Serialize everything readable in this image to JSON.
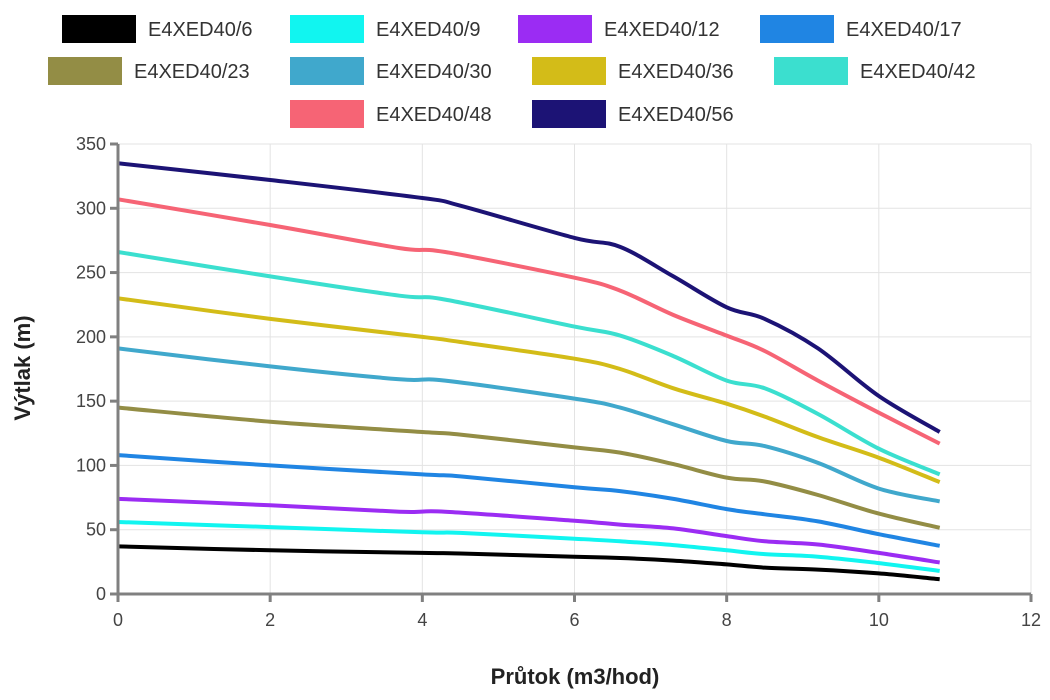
{
  "chart_data": {
    "type": "line",
    "xlabel": "Průtok (m3/hod)",
    "ylabel": "Výtlak (m)",
    "xlim": [
      0,
      12
    ],
    "ylim": [
      0,
      350
    ],
    "x_ticks": [
      0,
      2,
      4,
      6,
      8,
      10,
      12
    ],
    "y_ticks": [
      0,
      50,
      100,
      150,
      200,
      250,
      300,
      350
    ],
    "grid": true,
    "legend_position": "top",
    "series": [
      {
        "name": "E4XED40/6",
        "color": "#000000",
        "x": [
          0,
          2,
          4,
          4.5,
          6,
          6.6,
          7.3,
          8,
          8.5,
          9.2,
          10,
          10.8
        ],
        "y": [
          37,
          34,
          32,
          31.5,
          29,
          28,
          26,
          23,
          20.5,
          19,
          16,
          11.5
        ]
      },
      {
        "name": "E4XED40/9",
        "color": "#11f5f0",
        "x": [
          0,
          2,
          4,
          4.5,
          6,
          6.6,
          7.3,
          8,
          8.5,
          9.2,
          10,
          10.8
        ],
        "y": [
          56,
          52,
          48,
          47.5,
          43,
          41,
          38,
          34,
          31,
          29,
          24,
          18
        ]
      },
      {
        "name": "E4XED40/12",
        "color": "#9b2cf3",
        "x": [
          0,
          2,
          3.7,
          4.3,
          6,
          6.6,
          7.3,
          8,
          8.5,
          9.2,
          10,
          10.8
        ],
        "y": [
          74,
          69,
          64,
          64,
          57,
          54,
          51,
          45,
          41,
          38.5,
          32,
          24.5
        ]
      },
      {
        "name": "E4XED40/17",
        "color": "#2085e3",
        "x": [
          0,
          2,
          4,
          4.5,
          6,
          6.6,
          7.3,
          8,
          8.5,
          9.2,
          10,
          10.8
        ],
        "y": [
          108,
          100,
          93,
          91.5,
          83,
          80,
          74,
          66,
          62,
          56.5,
          46.5,
          37.5
        ]
      },
      {
        "name": "E4XED40/23",
        "color": "#938d45",
        "x": [
          0,
          2,
          4,
          4.5,
          6,
          6.6,
          7.3,
          8,
          8.5,
          9.2,
          10,
          10.8
        ],
        "y": [
          145,
          134,
          126,
          124,
          114,
          110,
          101,
          90.5,
          87.5,
          77,
          62.5,
          51.5
        ]
      },
      {
        "name": "E4XED40/30",
        "color": "#40a8cc",
        "x": [
          0,
          2,
          3.7,
          4.3,
          6,
          6.6,
          7.3,
          8,
          8.5,
          9.2,
          10,
          10.8
        ],
        "y": [
          191,
          177,
          167,
          166,
          152,
          145,
          132,
          119,
          115,
          102,
          82,
          72
        ]
      },
      {
        "name": "E4XED40/36",
        "color": "#d3bc18",
        "x": [
          0,
          2,
          4,
          4.5,
          6,
          6.6,
          7.3,
          8,
          8.5,
          9.2,
          10,
          10.8
        ],
        "y": [
          230,
          214,
          200,
          196,
          183,
          175,
          160,
          148,
          138,
          122,
          106,
          87
        ]
      },
      {
        "name": "E4XED40/42",
        "color": "#3bdfcf",
        "x": [
          0,
          2,
          3.7,
          4.3,
          6,
          6.6,
          7.3,
          8,
          8.5,
          9.2,
          10,
          10.8
        ],
        "y": [
          266,
          247,
          232,
          229,
          208,
          201,
          185,
          166,
          160,
          140,
          113,
          93
        ]
      },
      {
        "name": "E4XED40/48",
        "color": "#f66475",
        "x": [
          0,
          2,
          3.7,
          4.3,
          6,
          6.6,
          7.3,
          8,
          8.5,
          9.2,
          10,
          10.8
        ],
        "y": [
          307,
          287,
          269,
          266,
          246,
          236,
          217,
          201,
          189,
          166,
          141,
          117
        ]
      },
      {
        "name": "E4XED40/56",
        "color": "#1c1375",
        "x": [
          0,
          2,
          4,
          4.5,
          6,
          6.6,
          7.3,
          8,
          8.5,
          9.2,
          10,
          10.8
        ],
        "y": [
          335,
          322,
          308,
          302,
          277,
          270,
          247,
          223,
          214,
          191,
          154,
          126
        ]
      }
    ]
  }
}
